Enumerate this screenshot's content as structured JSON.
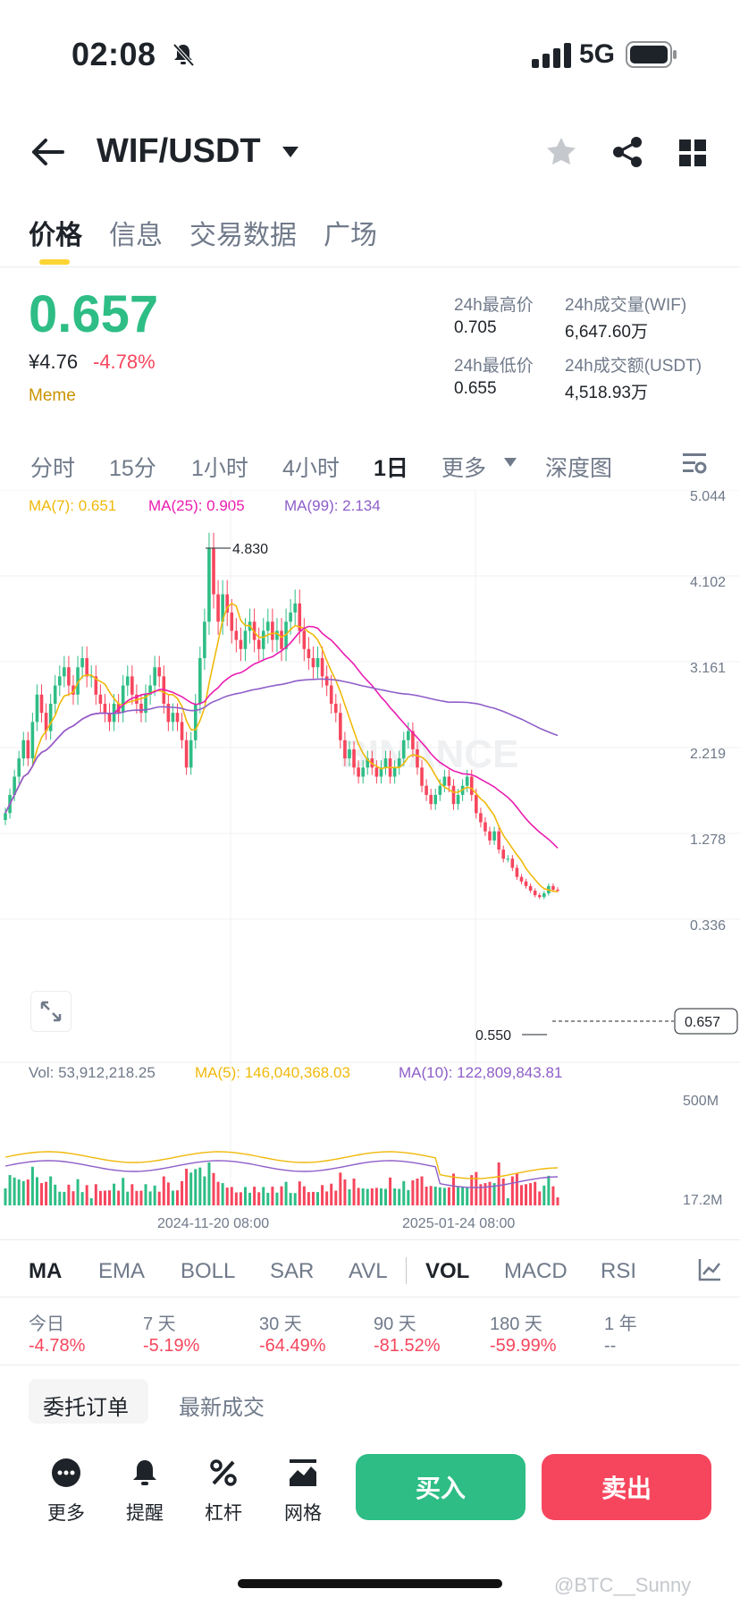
{
  "status_bar": {
    "time": "02:08",
    "network": "5G"
  },
  "header": {
    "pair": "WIF/USDT"
  },
  "tabs": [
    "价格",
    "信息",
    "交易数据",
    "广场"
  ],
  "ticker": {
    "price": "0.657",
    "cny": "¥4.76",
    "change": "-4.78%",
    "tag": "Meme",
    "high_label": "24h最高价",
    "high": "0.705",
    "low_label": "24h最低价",
    "low": "0.655",
    "vol_label": "24h成交量(WIF)",
    "vol": "6,647.60万",
    "amt_label": "24h成交额(USDT)",
    "amt": "4,518.93万"
  },
  "intervals": [
    "分时",
    "15分",
    "1小时",
    "4小时",
    "1日",
    "更多",
    "深度图"
  ],
  "chart": {
    "ma7": "MA(7): 0.651",
    "ma25": "MA(25): 0.905",
    "ma99": "MA(99): 2.134",
    "y_ticks": [
      "5.044",
      "4.102",
      "3.161",
      "2.219",
      "1.278",
      "0.336"
    ],
    "current": "0.657",
    "high_mark": "4.830",
    "low_mark": "0.550",
    "watermark": "BINANCE",
    "vol_label": "Vol: 53,912,218.25",
    "vol_ma5": "MA(5): 146,040,368.03",
    "vol_ma10": "MA(10): 122,809,843.81",
    "vol_ticks": [
      "500M",
      "17.2M"
    ],
    "x_ticks": [
      "2024-11-20 08:00",
      "2025-01-24 08:00"
    ],
    "colors": {
      "up": "#2ebd85",
      "down": "#f6465d",
      "ma7": "#f0b90b",
      "ma25": "#e91eb0",
      "ma99": "#8e5ec9"
    }
  },
  "chart_data": {
    "type": "candlestick",
    "title": "",
    "y_ticks": [
      5.044,
      4.102,
      3.161,
      2.219,
      1.278,
      0.336
    ],
    "ylim": [
      0.336,
      5.044
    ],
    "x_ticks": [
      "2024-11-20 08:00",
      "2025-01-24 08:00"
    ],
    "annotated_high": 4.83,
    "annotated_low": 0.55,
    "last": 0.657,
    "close": [
      1.5,
      1.7,
      1.9,
      2.1,
      2.3,
      2.1,
      2.5,
      2.8,
      2.6,
      2.4,
      2.7,
      2.9,
      3.0,
      3.1,
      2.9,
      2.8,
      3.1,
      3.2,
      3.0,
      3.0,
      2.8,
      2.7,
      2.6,
      2.5,
      2.7,
      2.6,
      2.9,
      3.0,
      2.8,
      2.7,
      2.6,
      2.8,
      2.9,
      3.1,
      3.0,
      2.7,
      2.5,
      2.6,
      2.5,
      2.3,
      2.0,
      2.3,
      2.7,
      3.2,
      3.6,
      4.4,
      3.9,
      3.6,
      3.9,
      3.7,
      3.5,
      3.4,
      3.3,
      3.5,
      3.6,
      3.4,
      3.3,
      3.5,
      3.6,
      3.4,
      3.5,
      3.3,
      3.6,
      3.7,
      3.8,
      3.5,
      3.3,
      3.2,
      3.1,
      3.2,
      3.0,
      2.9,
      2.7,
      2.6,
      2.3,
      2.1,
      2.2,
      2.0,
      1.9,
      2.0,
      2.1,
      2.0,
      1.9,
      2.0,
      2.1,
      1.9,
      2.0,
      2.1,
      2.3,
      2.4,
      2.2,
      2.0,
      1.8,
      1.7,
      1.6,
      1.7,
      1.8,
      1.9,
      1.8,
      1.6,
      1.7,
      1.8,
      1.9,
      1.7,
      1.5,
      1.4,
      1.3,
      1.2,
      1.3,
      1.1,
      1.0,
      1.0,
      0.9,
      0.8,
      0.75,
      0.7,
      0.65,
      0.6,
      0.58,
      0.62,
      0.7,
      0.66,
      0.657
    ],
    "series": [
      {
        "name": "MA(7)",
        "last": 0.651
      },
      {
        "name": "MA(25)",
        "last": 0.905
      },
      {
        "name": "MA(99)",
        "last": 2.134
      }
    ],
    "volume": {
      "last": 53912218.25,
      "ma5": 146040368.03,
      "ma10": 122809843.81,
      "y_ticks": [
        "500M",
        "17.2M"
      ]
    }
  },
  "indicators": [
    "MA",
    "EMA",
    "BOLL",
    "SAR",
    "AVL",
    "VOL",
    "MACD",
    "RSI"
  ],
  "periods": [
    {
      "label": "今日",
      "value": "-4.78%"
    },
    {
      "label": "7 天",
      "value": "-5.19%"
    },
    {
      "label": "30 天",
      "value": "-64.49%"
    },
    {
      "label": "90 天",
      "value": "-81.52%"
    },
    {
      "label": "180 天",
      "value": "-59.99%"
    },
    {
      "label": "1 年",
      "value": "--"
    }
  ],
  "order_tabs": [
    "委托订单",
    "最新成交"
  ],
  "bottom": {
    "more": "更多",
    "alert": "提醒",
    "leverage": "杠杆",
    "grid": "网格",
    "buy": "买入",
    "sell": "卖出"
  },
  "watermark": "@BTC__Sunny"
}
